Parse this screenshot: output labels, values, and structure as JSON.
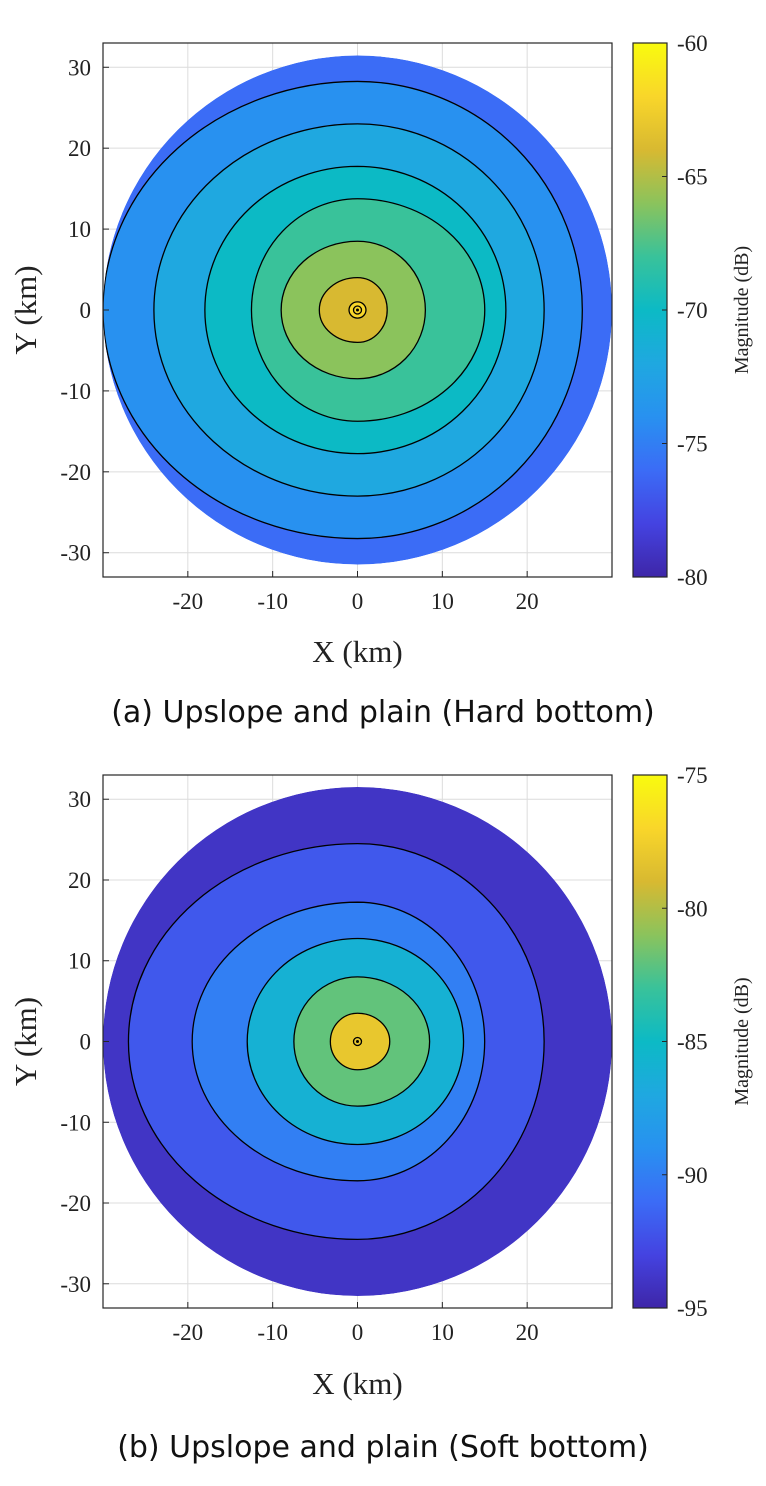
{
  "chart_data": [
    {
      "type": "heatmap",
      "subtype": "filled-contour",
      "caption": "(a) Upslope and plain (Hard bottom)",
      "xlabel": "X (km)",
      "ylabel": "Y (km)",
      "colorbar_label": "Magnitude (dB)",
      "xlim": [
        -30,
        30
      ],
      "ylim": [
        -33,
        33
      ],
      "xticks": [
        -20,
        -10,
        0,
        10,
        20
      ],
      "yticks": [
        -30,
        -20,
        -10,
        0,
        10,
        20,
        30
      ],
      "clim": [
        -80,
        -60
      ],
      "colorbar_ticks": [
        -80,
        -75,
        -70,
        -65,
        -60
      ],
      "colormap": "parula",
      "grid": true,
      "domain_radius_km": 30,
      "source_position": [
        0,
        0
      ],
      "contour_levels": [
        {
          "level": -62,
          "near_side_radius_km": 1.0,
          "far_side_radius_km": 1.0
        },
        {
          "level": -64,
          "near_side_radius_km": 4.5,
          "far_side_radius_km": 3.5
        },
        {
          "level": -66,
          "near_side_radius_km": 9.0,
          "far_side_radius_km": 8.0
        },
        {
          "level": -68,
          "near_side_radius_km": 12.5,
          "far_side_radius_km": 15.0
        },
        {
          "level": -70,
          "near_side_radius_km": 18.0,
          "far_side_radius_km": 17.5
        },
        {
          "level": -72,
          "near_side_radius_km": 24.0,
          "far_side_radius_km": 22.0
        },
        {
          "level": -74,
          "near_side_radius_km": 30.0,
          "far_side_radius_km": 26.5
        }
      ]
    },
    {
      "type": "heatmap",
      "subtype": "filled-contour",
      "caption": "(b) Upslope and plain (Soft bottom)",
      "xlabel": "X (km)",
      "ylabel": "Y (km)",
      "colorbar_label": "Magnitude (dB)",
      "xlim": [
        -30,
        30
      ],
      "ylim": [
        -33,
        33
      ],
      "xticks": [
        -20,
        -10,
        0,
        10,
        20
      ],
      "yticks": [
        -30,
        -20,
        -10,
        0,
        10,
        20,
        30
      ],
      "clim": [
        -95,
        -75
      ],
      "colorbar_ticks": [
        -95,
        -90,
        -85,
        -80,
        -75
      ],
      "colormap": "parula",
      "grid": true,
      "domain_radius_km": 30,
      "source_position": [
        0,
        0
      ],
      "contour_levels": [
        {
          "level": -78,
          "near_side_radius_km": 3.2,
          "far_side_radius_km": 3.8
        },
        {
          "level": -82,
          "near_side_radius_km": 7.5,
          "far_side_radius_km": 8.5
        },
        {
          "level": -86,
          "near_side_radius_km": 13.0,
          "far_side_radius_km": 12.5
        },
        {
          "level": -90,
          "near_side_radius_km": 19.5,
          "far_side_radius_km": 15.0
        },
        {
          "level": -92,
          "near_side_radius_km": 27.0,
          "far_side_radius_km": 22.0
        }
      ]
    }
  ]
}
